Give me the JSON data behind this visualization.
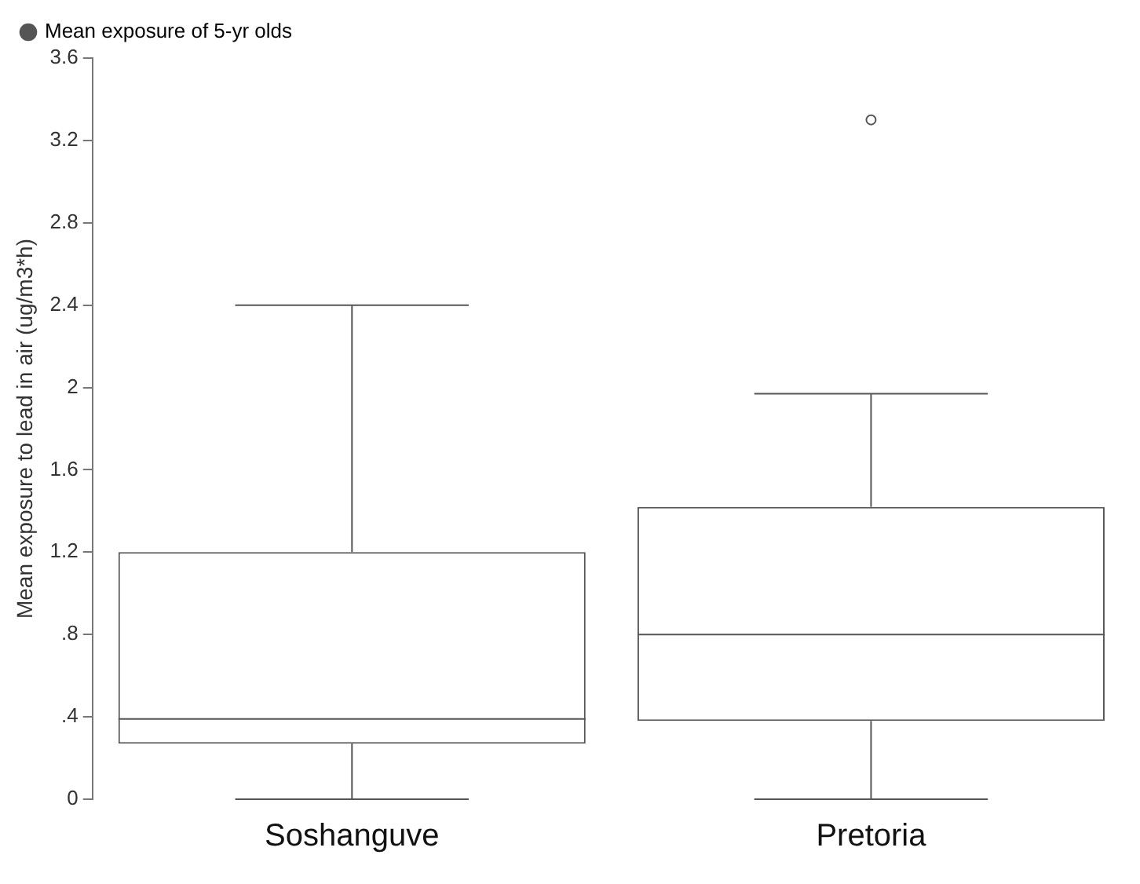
{
  "chart_data": {
    "type": "box",
    "categories": [
      "Soshanguve",
      "Pretoria"
    ],
    "series": [
      {
        "name": "Mean exposure of 5-yr olds",
        "color": "#555555",
        "boxes": [
          {
            "low": 0,
            "q1": 0.27,
            "median": 0.39,
            "q3": 1.2,
            "high": 2.4
          },
          {
            "low": 0,
            "q1": 0.38,
            "median": 0.8,
            "q3": 1.42,
            "high": 1.97,
            "outliers": [
              3.3
            ]
          }
        ]
      }
    ],
    "ylabel": "Mean exposure to lead in air (ug/m3*h)",
    "ylim": [
      0,
      3.6
    ],
    "yticks": [
      0,
      {
        "value": 0.4,
        "label": ".4"
      },
      {
        "value": 0.8,
        "label": ".8"
      },
      1.2,
      1.6,
      2,
      2.4,
      2.8,
      3.2,
      3.6
    ],
    "legend": "top left",
    "grid": false
  }
}
